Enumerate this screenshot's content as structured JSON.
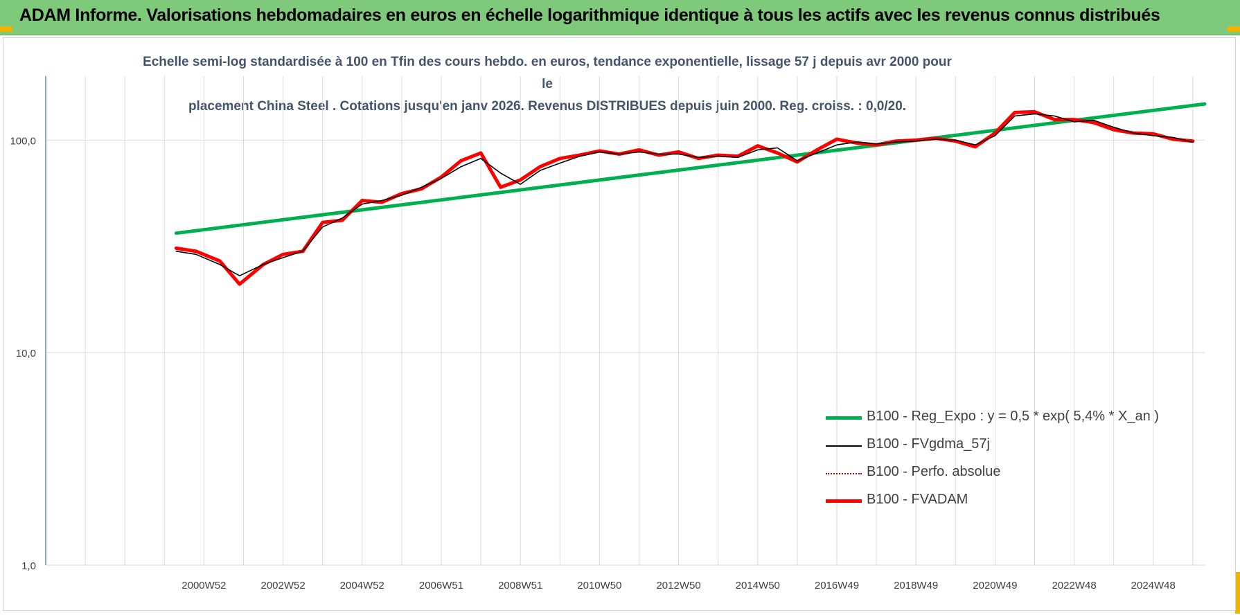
{
  "header": {
    "title": "ADAM Informe. Valorisations hebdomadaires en euros en échelle logarithmique identique à tous les actifs avec les revenus connus distribués"
  },
  "colors": {
    "header_bg": "#7ec97a",
    "regression": "#00b050",
    "moving_avg": "#000000",
    "perf": "#c00000",
    "fvadam": "#ff0000",
    "grid": "#d9d9d9",
    "axis": "#4472c4"
  },
  "chart_data": {
    "type": "line",
    "title_line1": "Echelle semi-log standardisée à 100 en Tfin des cours hebdo. en euros, tendance exponentielle, lissage 57 j depuis avr 2000 pour le",
    "title_line2": "placement China Steel . Cotations jusqu'en janv 2026. Revenus DISTRIBUES depuis juin 2000. Reg. croiss. : 0,0/20.",
    "y_scale": "log",
    "ylim": [
      1,
      200
    ],
    "y_ticks": [
      {
        "value": 1,
        "label": "1,0"
      },
      {
        "value": 10,
        "label": "10,0"
      },
      {
        "value": 100,
        "label": "100,0"
      }
    ],
    "xlim": [
      1997.0,
      2026.3
    ],
    "x_ticks": [
      {
        "value": 2001.0,
        "label": "2000W52"
      },
      {
        "value": 2003.0,
        "label": "2002W52"
      },
      {
        "value": 2005.0,
        "label": "2004W52"
      },
      {
        "value": 2007.0,
        "label": "2006W51"
      },
      {
        "value": 2009.0,
        "label": "2008W51"
      },
      {
        "value": 2011.0,
        "label": "2010W50"
      },
      {
        "value": 2013.0,
        "label": "2012W50"
      },
      {
        "value": 2015.0,
        "label": "2014W50"
      },
      {
        "value": 2017.0,
        "label": "2016W49"
      },
      {
        "value": 2019.0,
        "label": "2018W49"
      },
      {
        "value": 2021.0,
        "label": "2020W49"
      },
      {
        "value": 2023.0,
        "label": "2022W48"
      },
      {
        "value": 2025.0,
        "label": "2024W48"
      }
    ],
    "grid": true,
    "legend_position": "bottom-right",
    "series": [
      {
        "name": "B100 - Reg_Expo : y = 0,5 * exp( 5,4% *  X_an )",
        "style": "thick",
        "color": "#00b050",
        "x": [
          2000.3,
          2026.3
        ],
        "y": [
          36.5,
          148
        ]
      },
      {
        "name": "B100 - FVgdma_57j",
        "style": "thin",
        "color": "#000000",
        "x": [
          2000.3,
          2000.8,
          2001.4,
          2001.9,
          2002.5,
          2003.0,
          2003.5,
          2004.0,
          2004.5,
          2005.0,
          2005.5,
          2006.0,
          2006.5,
          2007.0,
          2007.5,
          2008.0,
          2008.5,
          2009.0,
          2009.5,
          2010.0,
          2010.5,
          2011.0,
          2011.5,
          2012.0,
          2012.5,
          2013.0,
          2013.5,
          2014.0,
          2014.5,
          2015.0,
          2015.5,
          2016.0,
          2016.5,
          2017.0,
          2017.5,
          2018.0,
          2018.5,
          2019.0,
          2019.5,
          2020.0,
          2020.5,
          2021.0,
          2021.5,
          2022.0,
          2022.5,
          2023.0,
          2023.5,
          2024.0,
          2024.5,
          2025.0,
          2025.5,
          2026.0
        ],
        "y": [
          30,
          29,
          26,
          23,
          26,
          28,
          30,
          39,
          43,
          50,
          52,
          55,
          60,
          66,
          75,
          82,
          70,
          62,
          72,
          78,
          84,
          88,
          86,
          88,
          86,
          86,
          83,
          84,
          83,
          90,
          92,
          80,
          87,
          95,
          98,
          96,
          98,
          99,
          101,
          100,
          95,
          105,
          130,
          133,
          130,
          122,
          124,
          115,
          108,
          105,
          103,
          98
        ]
      },
      {
        "name": "B100 - Perfo. absolue",
        "style": "dotted",
        "color": "#c00000",
        "x": [
          2000.3,
          2000.8,
          2001.4,
          2001.9,
          2002.5,
          2003.0,
          2003.5,
          2004.0,
          2004.5,
          2005.0,
          2005.5,
          2006.0,
          2006.5,
          2007.0,
          2007.5,
          2008.0,
          2008.5,
          2009.0,
          2009.5,
          2010.0,
          2010.5,
          2011.0,
          2011.5,
          2012.0,
          2012.5,
          2013.0,
          2013.5,
          2014.0,
          2014.5,
          2015.0,
          2015.5,
          2016.0,
          2016.5,
          2017.0,
          2017.5,
          2018.0,
          2018.5,
          2019.0,
          2019.5,
          2020.0,
          2020.5,
          2021.0,
          2021.5,
          2022.0,
          2022.5,
          2023.0,
          2023.5,
          2024.0,
          2024.5,
          2025.0,
          2025.5,
          2026.0
        ],
        "y": [
          31,
          30,
          27,
          21,
          26,
          29,
          30,
          41,
          42,
          52,
          51,
          56,
          59,
          67,
          80,
          87,
          60,
          65,
          75,
          82,
          85,
          89,
          86,
          90,
          85,
          88,
          82,
          85,
          84,
          94,
          87,
          79,
          90,
          101,
          97,
          95,
          99,
          100,
          102,
          99,
          93,
          108,
          135,
          136,
          125,
          125,
          121,
          112,
          108,
          107,
          101,
          99
        ]
      },
      {
        "name": "B100 - FVADAM",
        "style": "thick",
        "color": "#ff0000",
        "x": [
          2000.3,
          2000.8,
          2001.4,
          2001.9,
          2002.5,
          2003.0,
          2003.5,
          2004.0,
          2004.5,
          2005.0,
          2005.5,
          2006.0,
          2006.5,
          2007.0,
          2007.5,
          2008.0,
          2008.5,
          2009.0,
          2009.5,
          2010.0,
          2010.5,
          2011.0,
          2011.5,
          2012.0,
          2012.5,
          2013.0,
          2013.5,
          2014.0,
          2014.5,
          2015.0,
          2015.5,
          2016.0,
          2016.5,
          2017.0,
          2017.5,
          2018.0,
          2018.5,
          2019.0,
          2019.5,
          2020.0,
          2020.5,
          2021.0,
          2021.5,
          2022.0,
          2022.5,
          2023.0,
          2023.5,
          2024.0,
          2024.5,
          2025.0,
          2025.5,
          2026.0
        ],
        "y": [
          31,
          30,
          27,
          21,
          26,
          29,
          30,
          41,
          42,
          52,
          51,
          56,
          59,
          67,
          80,
          87,
          60,
          65,
          75,
          82,
          85,
          89,
          86,
          90,
          85,
          88,
          82,
          85,
          84,
          94,
          87,
          79,
          90,
          101,
          97,
          95,
          99,
          100,
          102,
          99,
          93,
          108,
          135,
          136,
          125,
          125,
          121,
          112,
          108,
          107,
          101,
          99
        ]
      }
    ]
  }
}
